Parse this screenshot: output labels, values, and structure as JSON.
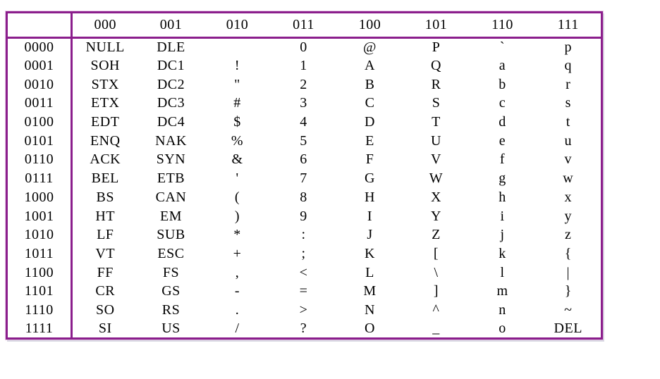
{
  "table": {
    "title": "ascii-code-table",
    "corner_label": "",
    "column_headers": [
      "000",
      "001",
      "010",
      "011",
      "100",
      "101",
      "110",
      "111"
    ],
    "rows": [
      {
        "bits": "0000",
        "cells": [
          "NULL",
          "DLE",
          "",
          "0",
          "@",
          "P",
          "`",
          "p"
        ]
      },
      {
        "bits": "0001",
        "cells": [
          "SOH",
          "DC1",
          "!",
          "1",
          "A",
          "Q",
          "a",
          "q"
        ]
      },
      {
        "bits": "0010",
        "cells": [
          "STX",
          "DC2",
          "\"",
          "2",
          "B",
          "R",
          "b",
          "r"
        ]
      },
      {
        "bits": "0011",
        "cells": [
          "ETX",
          "DC3",
          "#",
          "3",
          "C",
          "S",
          "c",
          "s"
        ]
      },
      {
        "bits": "0100",
        "cells": [
          "EDT",
          "DC4",
          "$",
          "4",
          "D",
          "T",
          "d",
          "t"
        ]
      },
      {
        "bits": "0101",
        "cells": [
          "ENQ",
          "NAK",
          "%",
          "5",
          "E",
          "U",
          "e",
          "u"
        ]
      },
      {
        "bits": "0110",
        "cells": [
          "ACK",
          "SYN",
          "&",
          "6",
          "F",
          "V",
          "f",
          "v"
        ]
      },
      {
        "bits": "0111",
        "cells": [
          "BEL",
          "ETB",
          "'",
          "7",
          "G",
          "W",
          "g",
          "w"
        ]
      },
      {
        "bits": "1000",
        "cells": [
          "BS",
          "CAN",
          "(",
          "8",
          "H",
          "X",
          "h",
          "x"
        ]
      },
      {
        "bits": "1001",
        "cells": [
          "HT",
          "EM",
          ")",
          "9",
          "I",
          "Y",
          "i",
          "y"
        ]
      },
      {
        "bits": "1010",
        "cells": [
          "LF",
          "SUB",
          "*",
          ":",
          "J",
          "Z",
          "j",
          "z"
        ]
      },
      {
        "bits": "1011",
        "cells": [
          "VT",
          "ESC",
          "+",
          ";",
          "K",
          "[",
          "k",
          "{"
        ]
      },
      {
        "bits": "1100",
        "cells": [
          "FF",
          "FS",
          ",",
          "<",
          "L",
          "\\",
          "l",
          "|"
        ]
      },
      {
        "bits": "1101",
        "cells": [
          "CR",
          "GS",
          "-",
          "=",
          "M",
          "]",
          "m",
          "}"
        ]
      },
      {
        "bits": "1110",
        "cells": [
          "SO",
          "RS",
          ".",
          ">",
          "N",
          "^",
          "n",
          "~"
        ]
      },
      {
        "bits": "1111",
        "cells": [
          "SI",
          "US",
          "/",
          "?",
          "O",
          "_",
          "o",
          "DEL"
        ]
      }
    ],
    "colors": {
      "border": "#8B1E8C",
      "text": "#000000",
      "background": "#FFFFFF"
    }
  }
}
